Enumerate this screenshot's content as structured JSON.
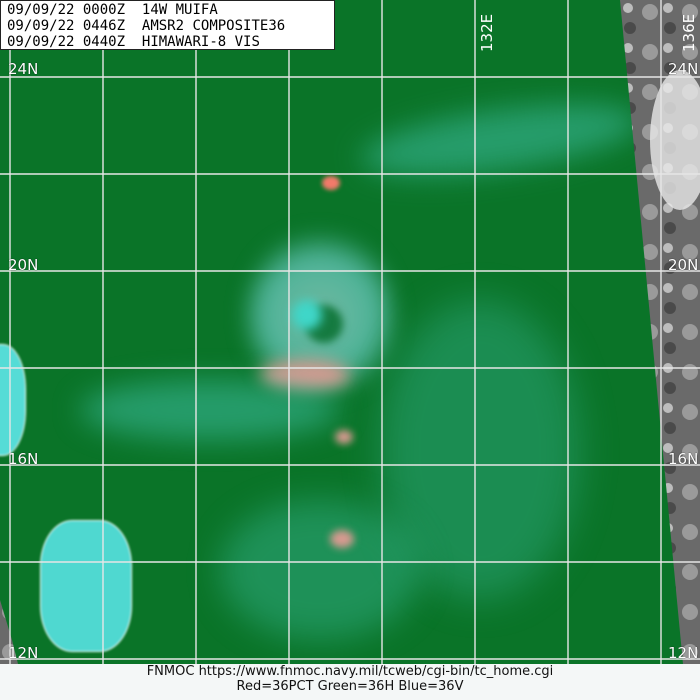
{
  "header": {
    "lines": [
      {
        "date": "09/09/22",
        "time": "0000Z",
        "label": "14W MUIFA"
      },
      {
        "date": "09/09/22",
        "time": "0446Z",
        "label": "AMSR2 COMPOSITE36"
      },
      {
        "date": "09/09/22",
        "time": "0440Z",
        "label": "HIMAWARI-8 VIS"
      }
    ]
  },
  "grid": {
    "lat_labels": [
      "24N",
      "20N",
      "16N",
      "12N"
    ],
    "lon_labels": [
      "132E",
      "136E"
    ]
  },
  "footer": {
    "source": "FNMOC https://www.fnmoc.navy.mil/tcweb/cgi-bin/tc_home.cgi",
    "legend": "Red=36PCT   Green=36H   Blue=36V"
  },
  "colors": {
    "background": "#0a7428",
    "convection": "#e89a90",
    "cyan": "#3fd6c8"
  }
}
